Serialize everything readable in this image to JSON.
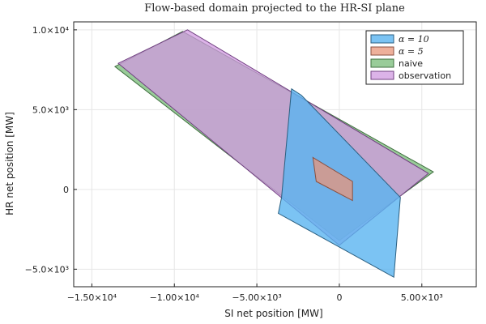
{
  "chart_data": {
    "type": "area",
    "title": "Flow-based domain projected to the HR-SI plane",
    "xlabel": "SI net position [MW]",
    "ylabel": "HR net position [MW]",
    "xlim": [
      -16100,
      8300
    ],
    "ylim": [
      -6100,
      10500
    ],
    "x_ticks": [
      {
        "value": -15000,
        "label": "−1.50×10⁴"
      },
      {
        "value": -10000,
        "label": "−1.00×10⁴"
      },
      {
        "value": -5000,
        "label": "−5.00×10³"
      },
      {
        "value": 0,
        "label": "0"
      },
      {
        "value": 5000,
        "label": "5.00×10³"
      }
    ],
    "y_ticks": [
      {
        "value": -5000,
        "label": "−5.0×10³"
      },
      {
        "value": 0,
        "label": "0"
      },
      {
        "value": 5000,
        "label": "5.0×10³"
      },
      {
        "value": 10000,
        "label": "1.0×10⁴"
      }
    ],
    "grid": true,
    "legend_position": "top-right",
    "series": [
      {
        "name": "α = 10",
        "math": true,
        "fill": "#5ab4f0",
        "stroke": "#2b5f80",
        "opacity": 0.8,
        "polygon": [
          [
            -2900,
            6300
          ],
          [
            -2300,
            5900
          ],
          [
            3700,
            -500
          ],
          [
            3300,
            -5500
          ],
          [
            -3700,
            -1500
          ],
          [
            -3500,
            -500
          ]
        ]
      },
      {
        "name": "α = 5",
        "math": true,
        "fill": "#e8967a",
        "stroke": "#8a5040",
        "opacity": 0.75,
        "polygon": [
          [
            -1600,
            2000
          ],
          [
            800,
            500
          ],
          [
            800,
            -700
          ],
          [
            -1400,
            500
          ]
        ]
      },
      {
        "name": "naive",
        "math": false,
        "fill": "#7fbf7f",
        "stroke": "#3f6f3f",
        "opacity": 0.8,
        "polygon": [
          [
            -13600,
            7700
          ],
          [
            -9500,
            9900
          ],
          [
            5700,
            1100
          ],
          [
            0,
            -3200
          ]
        ]
      },
      {
        "name": "observation",
        "math": false,
        "fill": "#d09ae0",
        "stroke": "#704080",
        "opacity": 0.75,
        "polygon": [
          [
            -13400,
            7900
          ],
          [
            -9200,
            10000
          ],
          [
            5400,
            1000
          ],
          [
            0,
            -3500
          ]
        ]
      }
    ]
  }
}
